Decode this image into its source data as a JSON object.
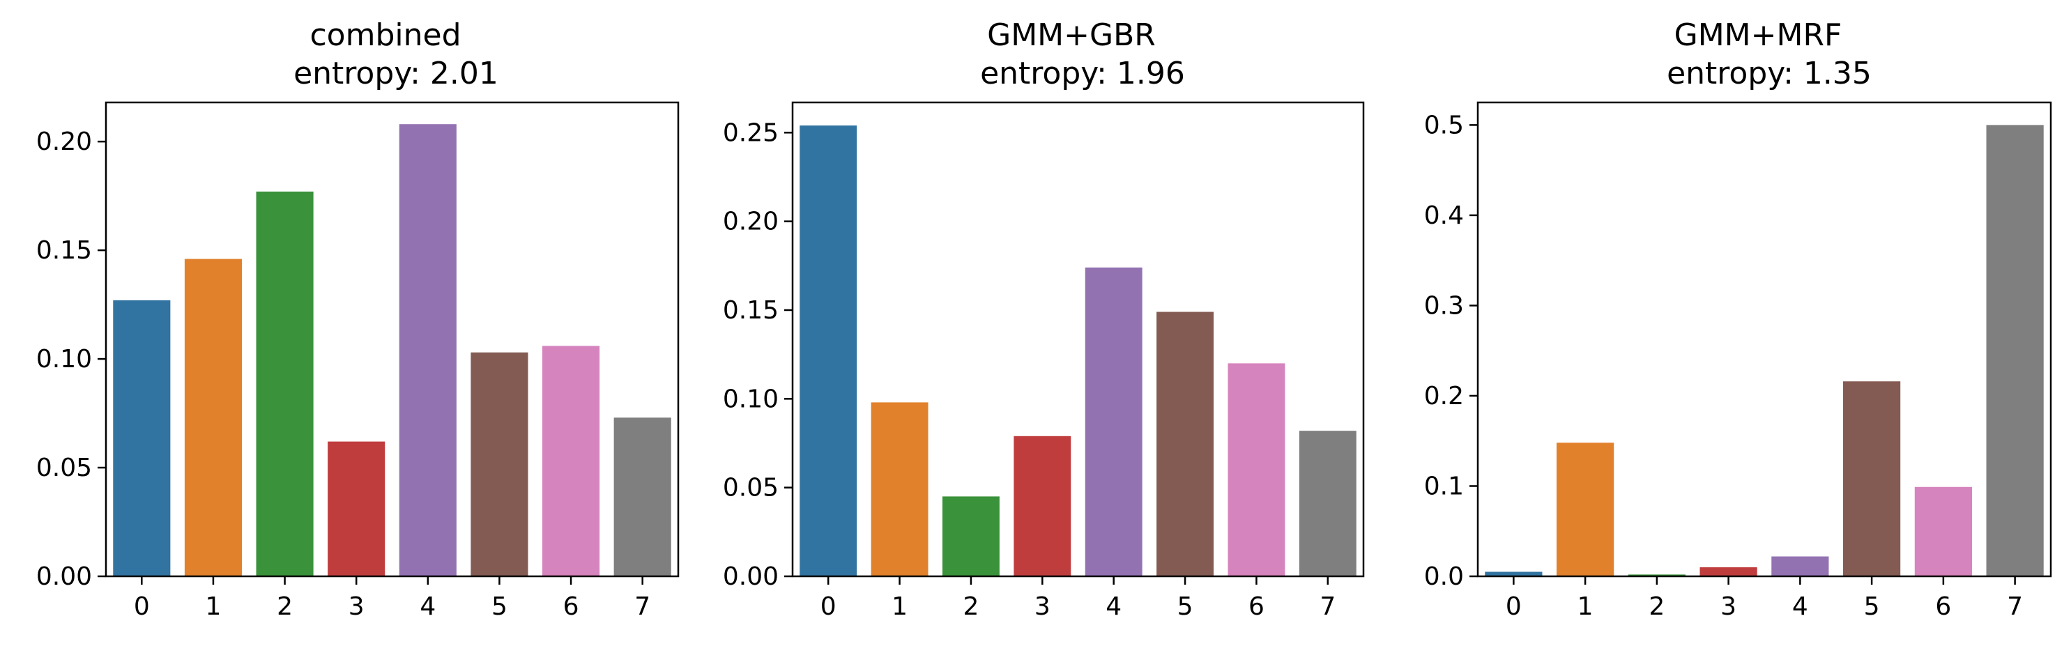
{
  "chart_data": [
    {
      "type": "bar",
      "title": "combined",
      "subtitle": "entropy: 2.01",
      "categories": [
        "0",
        "1",
        "2",
        "3",
        "4",
        "5",
        "6",
        "7"
      ],
      "values": [
        0.127,
        0.146,
        0.177,
        0.062,
        0.208,
        0.103,
        0.106,
        0.073
      ],
      "ylim": [
        0,
        0.218
      ],
      "yticks": [
        0.0,
        0.05,
        0.1,
        0.15,
        0.2
      ],
      "ytick_labels": [
        "0.00",
        "0.05",
        "0.10",
        "0.15",
        "0.20"
      ],
      "colors": [
        "#3274a1",
        "#e1812c",
        "#3a923a",
        "#c03d3e",
        "#9372b2",
        "#845b53",
        "#d684bd",
        "#7f7f7f"
      ],
      "grid": false
    },
    {
      "type": "bar",
      "title": "GMM+GBR",
      "subtitle": "entropy: 1.96",
      "categories": [
        "0",
        "1",
        "2",
        "3",
        "4",
        "5",
        "6",
        "7"
      ],
      "values": [
        0.254,
        0.098,
        0.045,
        0.079,
        0.174,
        0.149,
        0.12,
        0.082
      ],
      "ylim": [
        0,
        0.267
      ],
      "yticks": [
        0.0,
        0.05,
        0.1,
        0.15,
        0.2,
        0.25
      ],
      "ytick_labels": [
        "0.00",
        "0.05",
        "0.10",
        "0.15",
        "0.20",
        "0.25"
      ],
      "colors": [
        "#3274a1",
        "#e1812c",
        "#3a923a",
        "#c03d3e",
        "#9372b2",
        "#845b53",
        "#d684bd",
        "#7f7f7f"
      ],
      "grid": false
    },
    {
      "type": "bar",
      "title": "GMM+MRF",
      "subtitle": "entropy: 1.35",
      "categories": [
        "0",
        "1",
        "2",
        "3",
        "4",
        "5",
        "6",
        "7"
      ],
      "values": [
        0.005,
        0.148,
        0.002,
        0.01,
        0.022,
        0.216,
        0.099,
        0.5
      ],
      "ylim": [
        0,
        0.525
      ],
      "yticks": [
        0.0,
        0.1,
        0.2,
        0.3,
        0.4,
        0.5
      ],
      "ytick_labels": [
        "0.0",
        "0.1",
        "0.2",
        "0.3",
        "0.4",
        "0.5"
      ],
      "colors": [
        "#3274a1",
        "#e1812c",
        "#3a923a",
        "#c03d3e",
        "#9372b2",
        "#845b53",
        "#d684bd",
        "#7f7f7f"
      ],
      "grid": false
    }
  ]
}
